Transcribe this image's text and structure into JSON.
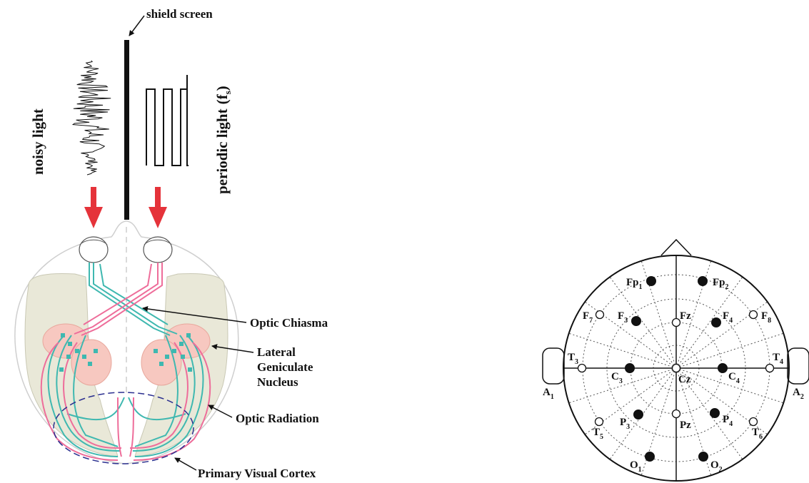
{
  "visual_pathway": {
    "labels": {
      "shield_screen": "shield screen",
      "noisy_light": "noisy light",
      "periodic_light": "periodic light",
      "periodic_light_f": "(f",
      "periodic_light_sub": "s",
      "periodic_light_close": ")",
      "optic_chiasma": "Optic Chiasma",
      "lgn_line1": "Lateral",
      "lgn_line2": "Geniculate",
      "lgn_line3": "Nucleus",
      "optic_radiation": "Optic Radiation",
      "primary_visual_cortex": "Primary Visual Cortex"
    },
    "colors": {
      "left_pathway": "#3fb8b0",
      "right_pathway": "#ee6d9a",
      "arrow": "#e5333a",
      "lobe_fill": "#e9e8d8",
      "lgn_fill": "#f7c8c0",
      "cortex_outline": "#2b2f8f"
    }
  },
  "eeg_montage": {
    "electrodes": [
      {
        "id": "fp1",
        "label": "Fp",
        "sub": "1",
        "filled": true
      },
      {
        "id": "fp2",
        "label": "Fp",
        "sub": "2",
        "filled": true
      },
      {
        "id": "f7",
        "label": "F",
        "sub": "7",
        "filled": false
      },
      {
        "id": "f3",
        "label": "F",
        "sub": "3",
        "filled": true
      },
      {
        "id": "fz",
        "label": "Fz",
        "sub": "",
        "filled": false
      },
      {
        "id": "f4",
        "label": "F",
        "sub": "4",
        "filled": true
      },
      {
        "id": "f8",
        "label": "F",
        "sub": "8",
        "filled": false
      },
      {
        "id": "t3",
        "label": "T",
        "sub": "3",
        "filled": false
      },
      {
        "id": "c3",
        "label": "C",
        "sub": "3",
        "filled": true
      },
      {
        "id": "cz",
        "label": "Cz",
        "sub": "",
        "filled": false
      },
      {
        "id": "c4",
        "label": "C",
        "sub": "4",
        "filled": true
      },
      {
        "id": "t4",
        "label": "T",
        "sub": "4",
        "filled": false
      },
      {
        "id": "t5",
        "label": "T",
        "sub": "5",
        "filled": false
      },
      {
        "id": "p3",
        "label": "P",
        "sub": "3",
        "filled": true
      },
      {
        "id": "pz",
        "label": "Pz",
        "sub": "",
        "filled": false
      },
      {
        "id": "p4",
        "label": "P",
        "sub": "4",
        "filled": true
      },
      {
        "id": "t6",
        "label": "T",
        "sub": "6",
        "filled": false
      },
      {
        "id": "o1",
        "label": "O",
        "sub": "1",
        "filled": true
      },
      {
        "id": "o2",
        "label": "O",
        "sub": "2",
        "filled": true
      }
    ],
    "ears": [
      {
        "id": "a1",
        "label": "A",
        "sub": "1"
      },
      {
        "id": "a2",
        "label": "A",
        "sub": "2"
      }
    ]
  }
}
